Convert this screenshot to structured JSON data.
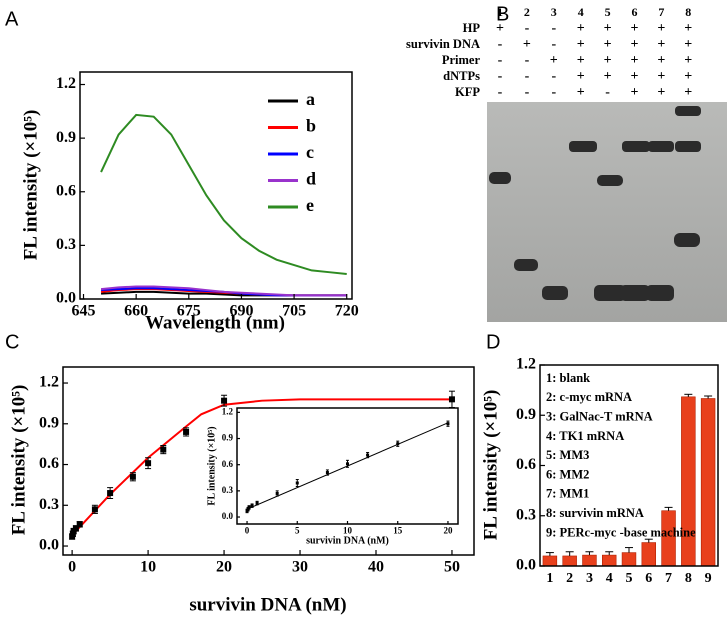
{
  "chart_data": [
    {
      "type": "line",
      "panel": "A",
      "x_label": "Wavelength (nm)",
      "y_label": "FL intensity (×10⁵)",
      "x": [
        650,
        655,
        660,
        665,
        670,
        675,
        680,
        685,
        690,
        695,
        700,
        705,
        710,
        715,
        720
      ],
      "series": [
        {
          "name": "a",
          "color": "#000000",
          "values": [
            0.03,
            0.035,
            0.04,
            0.04,
            0.035,
            0.03,
            0.03,
            0.025,
            0.02,
            0.02,
            0.02,
            0.02,
            0.02,
            0.02,
            0.02
          ]
        },
        {
          "name": "b",
          "color": "#ff0000",
          "values": [
            0.04,
            0.05,
            0.055,
            0.055,
            0.05,
            0.045,
            0.04,
            0.035,
            0.03,
            0.025,
            0.02,
            0.02,
            0.02,
            0.02,
            0.02
          ]
        },
        {
          "name": "c",
          "color": "#0000ff",
          "values": [
            0.05,
            0.055,
            0.06,
            0.06,
            0.055,
            0.05,
            0.045,
            0.04,
            0.03,
            0.025,
            0.02,
            0.02,
            0.02,
            0.02,
            0.02
          ]
        },
        {
          "name": "d",
          "color": "#9933cc",
          "values": [
            0.055,
            0.065,
            0.07,
            0.07,
            0.065,
            0.06,
            0.05,
            0.04,
            0.035,
            0.03,
            0.025,
            0.02,
            0.02,
            0.02,
            0.02
          ]
        },
        {
          "name": "e",
          "color": "#2e8b22",
          "values": [
            0.71,
            0.92,
            1.03,
            1.02,
            0.92,
            0.75,
            0.58,
            0.44,
            0.34,
            0.27,
            0.22,
            0.19,
            0.16,
            0.15,
            0.14
          ]
        }
      ],
      "xlim": [
        644,
        721.5
      ],
      "ylim": [
        0,
        1.27
      ],
      "xticks": [
        645,
        660,
        675,
        690,
        705,
        720
      ],
      "yticks": [
        {
          "value": 0,
          "label": "0.0"
        },
        0.3,
        0.6,
        0.9,
        1.2
      ]
    },
    {
      "type": "scatter",
      "panel": "C",
      "x_label": "survivin DNA (nM)",
      "y_label": "FL intensity (×10⁵)",
      "color": "#000000",
      "x": [
        0,
        0.1,
        0.2,
        0.5,
        1,
        3,
        5,
        8,
        10,
        12,
        15,
        20,
        50
      ],
      "values": [
        0.07,
        0.09,
        0.11,
        0.13,
        0.16,
        0.27,
        0.39,
        0.51,
        0.61,
        0.71,
        0.84,
        1.07,
        1.08
      ],
      "errors": [
        0.02,
        0.02,
        0.02,
        0.02,
        0.02,
        0.03,
        0.04,
        0.03,
        0.04,
        0.03,
        0.03,
        0.04,
        0.06
      ],
      "fit": {
        "color": "#ff0000",
        "x": [
          0,
          5,
          10,
          15,
          17,
          20,
          25,
          30,
          40,
          50
        ],
        "values": [
          0.08,
          0.38,
          0.65,
          0.88,
          0.97,
          1.04,
          1.07,
          1.08,
          1.08,
          1.08
        ]
      },
      "xlim": [
        -1.2,
        52.9
      ],
      "ylim": [
        -0.066,
        1.318
      ],
      "xticks": [
        0,
        10,
        20,
        30,
        40,
        50
      ],
      "yticks": [
        {
          "value": 0,
          "label": "0.0"
        },
        0.3,
        0.6,
        0.9,
        1.2
      ],
      "inset": {
        "x_label": "survivin DNA (nM)",
        "y_label": "FL intensity (×10⁵)",
        "x": [
          0,
          0.1,
          0.2,
          0.5,
          1,
          3,
          5,
          8,
          10,
          12,
          15,
          20
        ],
        "values": [
          0.07,
          0.09,
          0.11,
          0.13,
          0.16,
          0.27,
          0.39,
          0.51,
          0.61,
          0.71,
          0.84,
          1.07
        ],
        "errors": [
          0.02,
          0.02,
          0.02,
          0.02,
          0.02,
          0.03,
          0.04,
          0.03,
          0.04,
          0.03,
          0.03,
          0.03
        ],
        "fit": {
          "x": [
            0,
            20
          ],
          "values": [
            0.09,
            1.08
          ]
        },
        "xlim": [
          -1,
          21
        ],
        "ylim": [
          -0.08,
          1.25
        ],
        "xticks": [
          0,
          5,
          10,
          15,
          20
        ],
        "yticks": [
          {
            "value": 0,
            "label": "0.0"
          },
          0.3,
          0.6,
          0.9,
          1.2
        ]
      }
    },
    {
      "type": "bar",
      "panel": "D",
      "y_label": "FL intensity (×10⁵)",
      "color": "#e8401c",
      "categories": [
        "1",
        "2",
        "3",
        "4",
        "5",
        "6",
        "7",
        "8",
        "9"
      ],
      "values": [
        0.06,
        0.06,
        0.065,
        0.065,
        0.08,
        0.14,
        0.33,
        1.01,
        1.0
      ],
      "errors": [
        0.02,
        0.025,
        0.02,
        0.02,
        0.03,
        0.02,
        0.02,
        0.015,
        0.015
      ],
      "ylim": [
        0,
        1.2
      ],
      "yticks": [
        {
          "value": 0,
          "label": "0.0"
        },
        0.3,
        0.6,
        0.9,
        1.2
      ],
      "legend_items": [
        "1: blank",
        "2: c-myc mRNA",
        "3: GalNac-T mRNA",
        "4: TK1 mRNA",
        "5: MM3",
        "6: MM2",
        "7: MM1",
        "8: survivin mRNA",
        "9: PERc-myc -base machine"
      ]
    }
  ],
  "gel": {
    "panel": "B",
    "lanes": [
      "1",
      "2",
      "3",
      "4",
      "5",
      "6",
      "7",
      "8"
    ],
    "rows": [
      {
        "label": "HP",
        "cells": [
          "+",
          "-",
          "-",
          "+",
          "+",
          "+",
          "+",
          "+"
        ]
      },
      {
        "label": "survivin DNA",
        "cells": [
          "-",
          "+",
          "-",
          "+",
          "+",
          "+",
          "+",
          "+"
        ]
      },
      {
        "label": "Primer",
        "cells": [
          "-",
          "-",
          "+",
          "+",
          "+",
          "+",
          "+",
          "+"
        ]
      },
      {
        "label": "dNTPs",
        "cells": [
          "-",
          "-",
          "-",
          "+",
          "+",
          "+",
          "+",
          "+"
        ]
      },
      {
        "label": "KFP",
        "cells": [
          "-",
          "-",
          "-",
          "+",
          "-",
          "+",
          "+",
          "+"
        ]
      }
    ]
  }
}
